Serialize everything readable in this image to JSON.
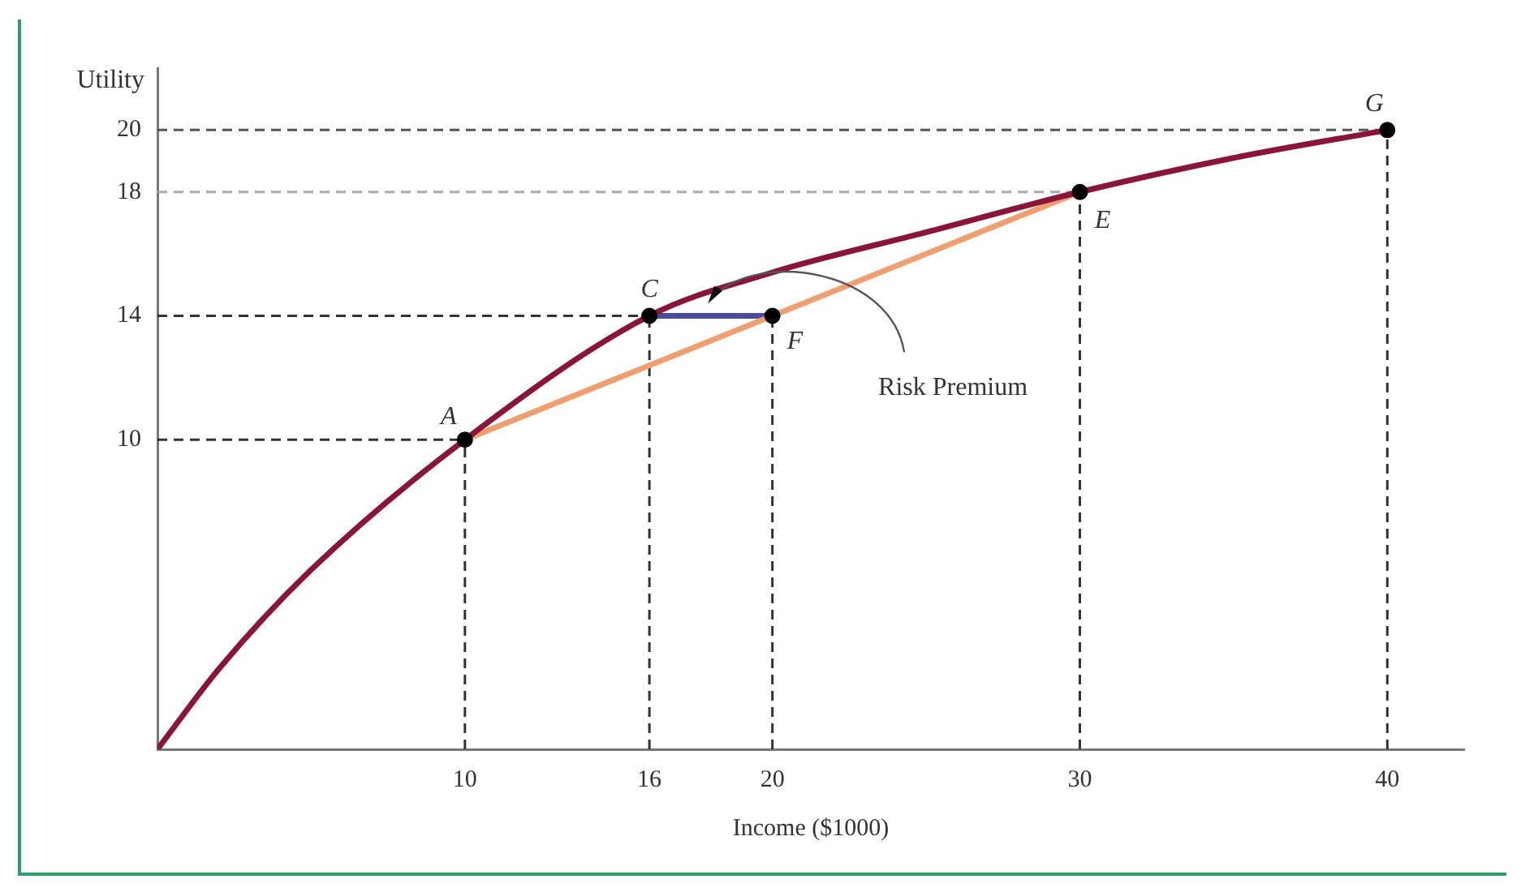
{
  "chart_data": {
    "type": "line",
    "xlabel": "Income ($1000)",
    "ylabel": "Utility",
    "xlim": [
      0,
      42.5
    ],
    "ylim": [
      0,
      22
    ],
    "xticks": [
      10,
      16,
      20,
      30,
      40
    ],
    "yticks": [
      10,
      14,
      18,
      20
    ],
    "grid": false,
    "legend": false,
    "line_style": "solid",
    "series": [
      {
        "type": "line",
        "color": "#8b1538",
        "marker": "none",
        "x": [
          0,
          2,
          5,
          10,
          16,
          20,
          25,
          30,
          35,
          40
        ],
        "values": [
          0,
          2.6,
          5.8,
          10,
          14,
          15.4,
          16.7,
          18,
          19.1,
          20
        ]
      },
      {
        "type": "line",
        "color": "#f0a070",
        "marker": "none",
        "x": [
          10,
          30
        ],
        "values": [
          10,
          18
        ]
      },
      {
        "type": "line",
        "color": "#4b4b9b",
        "marker": "none",
        "x": [
          16,
          20
        ],
        "values": [
          14,
          14
        ]
      },
      {
        "type": "scatter",
        "color": "#000000",
        "marker": "circle",
        "x": [
          10,
          16,
          20,
          30,
          40
        ],
        "values": [
          10,
          14,
          14,
          18,
          20
        ]
      }
    ],
    "ref_lines": [
      {
        "axis": "y",
        "value": 20,
        "line_style": "dashed",
        "color": "#555555"
      },
      {
        "axis": "y",
        "value": 18,
        "line_style": "dashed",
        "color": "#aaaaaa"
      },
      {
        "axis": "y",
        "value": 14,
        "line_style": "dashed",
        "color": "#333333"
      },
      {
        "axis": "y",
        "value": 10,
        "line_style": "dashed",
        "color": "#333333"
      },
      {
        "axis": "x",
        "value": 10,
        "line_style": "dashed",
        "color": "#333333"
      },
      {
        "axis": "x",
        "value": 16,
        "line_style": "dashed",
        "color": "#333333"
      },
      {
        "axis": "x",
        "value": 20,
        "line_style": "dashed",
        "color": "#333333"
      },
      {
        "axis": "x",
        "value": 30,
        "line_style": "dashed",
        "color": "#333333"
      },
      {
        "axis": "x",
        "value": 40,
        "line_style": "dashed",
        "color": "#333333"
      }
    ],
    "annotations": [
      {
        "text": "A",
        "x": 10,
        "y": 10
      },
      {
        "text": "C",
        "x": 16,
        "y": 14
      },
      {
        "text": "F",
        "x": 20,
        "y": 14
      },
      {
        "text": "E",
        "x": 30,
        "y": 18
      },
      {
        "text": "G",
        "x": 40,
        "y": 20
      },
      "Risk Premium"
    ]
  }
}
